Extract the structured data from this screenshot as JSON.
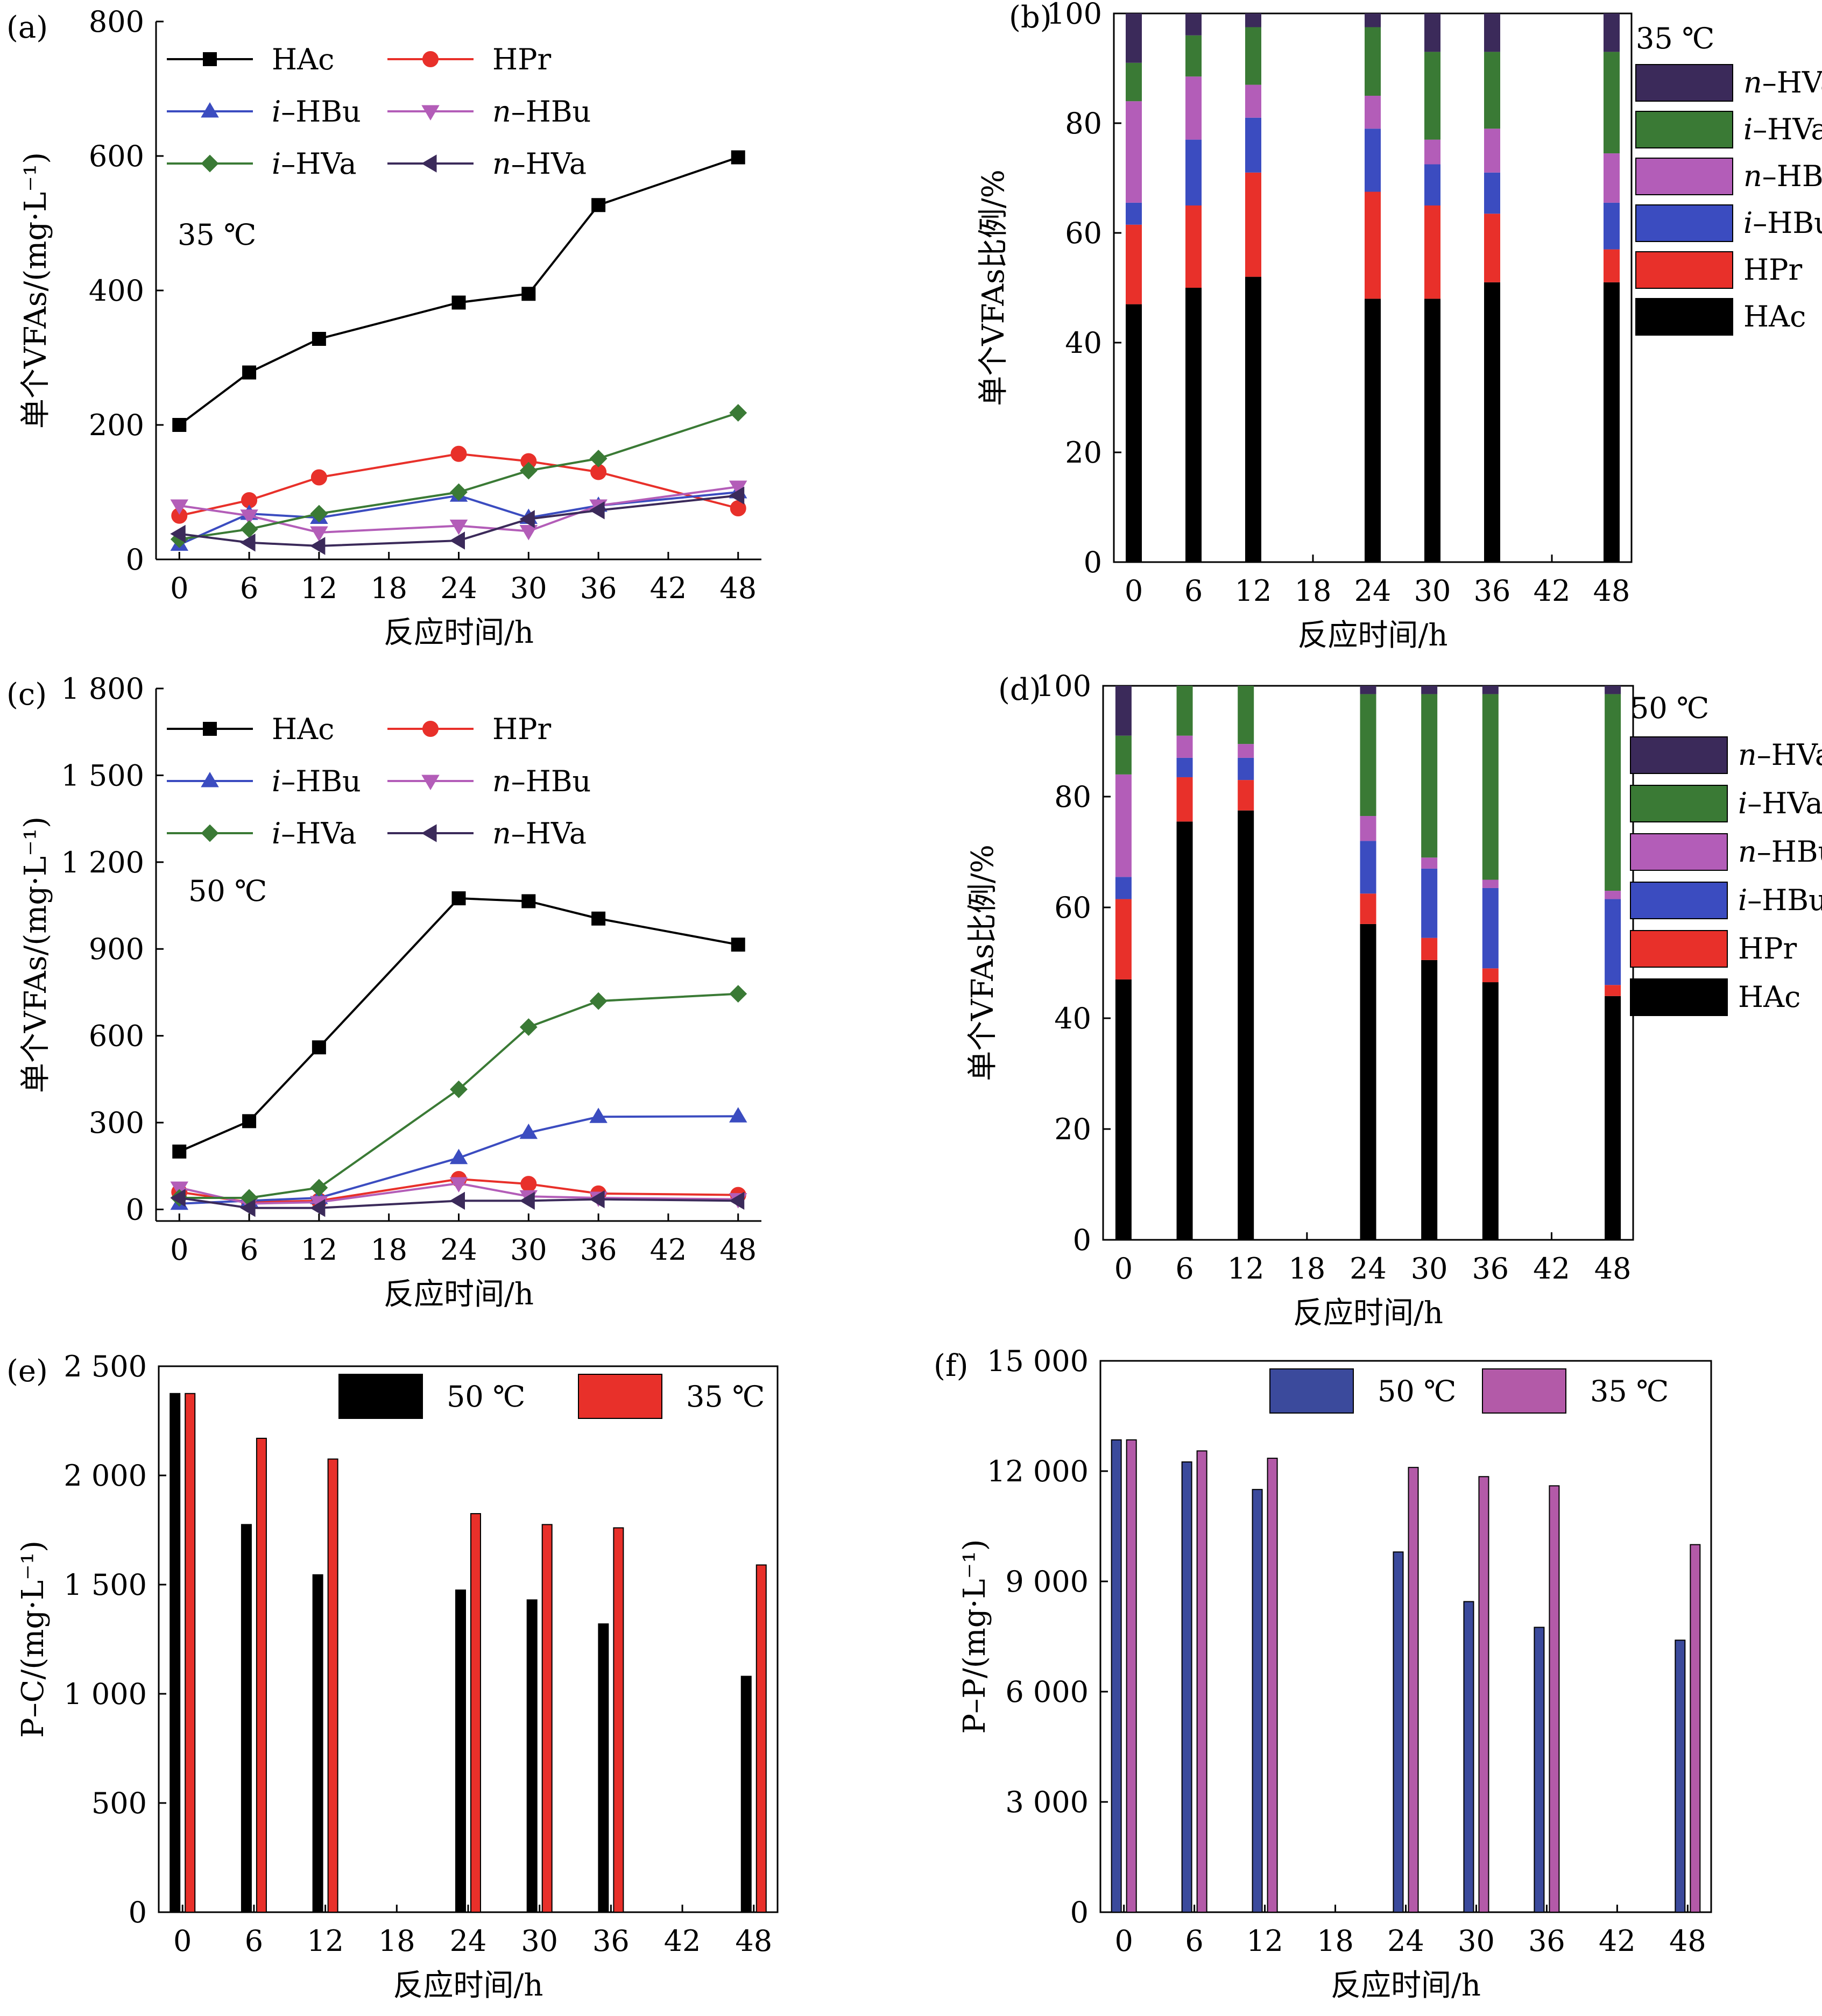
{
  "colors": {
    "HAc": "#000000",
    "HPr": "#e8302a",
    "i-HBu": "#3b4cc0",
    "n-HBu": "#b35db8",
    "i-HVa": "#3a7a35",
    "n-HVa": "#3b2a5a",
    "bar50": "#3b4a9c",
    "bar35": "#b35aa8"
  },
  "chart_data": [
    {
      "id": "a",
      "panel_label": "(a)",
      "type": "line",
      "annotation": "35 ℃",
      "xlabel": "反应时间/h",
      "ylabel": "单个VFAs/(mg·L⁻¹)",
      "xlim": [
        -2,
        50
      ],
      "ylim": [
        0,
        800
      ],
      "xticks": [
        0,
        6,
        12,
        18,
        24,
        30,
        36,
        42,
        48
      ],
      "xtick_labels": [
        "0",
        "6",
        "12",
        "18",
        "24",
        "30",
        "36",
        "42",
        "48"
      ],
      "yticks": [
        0,
        200,
        400,
        600,
        800
      ],
      "ytick_labels": [
        "0",
        "200",
        "400",
        "600",
        "800"
      ],
      "x": [
        0,
        6,
        12,
        24,
        30,
        36,
        48
      ],
      "series": [
        {
          "name": "HAc",
          "label_prefix": "",
          "label_main": "HAc",
          "marker": "square",
          "values": [
            200,
            278,
            328,
            382,
            395,
            527,
            598
          ]
        },
        {
          "name": "HPr",
          "label_prefix": "",
          "label_main": "HPr",
          "marker": "circle",
          "values": [
            65,
            88,
            122,
            157,
            146,
            130,
            76
          ]
        },
        {
          "name": "i-HBu",
          "label_prefix": "i",
          "label_main": "–HBu",
          "marker": "triangle-up",
          "values": [
            22,
            68,
            62,
            95,
            62,
            80,
            100
          ]
        },
        {
          "name": "n-HBu",
          "label_prefix": "n",
          "label_main": "–HBu",
          "marker": "triangle-down",
          "values": [
            80,
            65,
            40,
            50,
            42,
            80,
            108
          ]
        },
        {
          "name": "i-HVa",
          "label_prefix": "i",
          "label_main": "–HVa",
          "marker": "diamond",
          "values": [
            30,
            45,
            68,
            100,
            132,
            150,
            218
          ]
        },
        {
          "name": "n-HVa",
          "label_prefix": "n",
          "label_main": "–HVa",
          "marker": "triangle-left",
          "values": [
            38,
            25,
            20,
            28,
            60,
            73,
            95
          ]
        }
      ]
    },
    {
      "id": "b",
      "panel_label": "(b)",
      "type": "bar",
      "stacked": true,
      "legend_title": "35 ℃",
      "xlabel": "反应时间/h",
      "ylabel": "单个VFAs比例/%",
      "xlim": [
        -2,
        50
      ],
      "ylim": [
        0,
        100
      ],
      "xticks": [
        0,
        6,
        12,
        18,
        24,
        30,
        36,
        42,
        48
      ],
      "xtick_labels": [
        "0",
        "6",
        "12",
        "18",
        "24",
        "30",
        "36",
        "42",
        "48"
      ],
      "yticks": [
        0,
        20,
        40,
        60,
        80,
        100
      ],
      "ytick_labels": [
        "0",
        "20",
        "40",
        "60",
        "80",
        "100"
      ],
      "x": [
        0,
        6,
        12,
        24,
        30,
        36,
        48
      ],
      "series": [
        {
          "name": "HAc",
          "label_prefix": "",
          "label_main": "HAc",
          "values": [
            47,
            50,
            52,
            48,
            48,
            51,
            51
          ]
        },
        {
          "name": "HPr",
          "label_prefix": "",
          "label_main": "HPr",
          "values": [
            14.5,
            15,
            19,
            19.5,
            17,
            12.5,
            6
          ]
        },
        {
          "name": "i-HBu",
          "label_prefix": "i",
          "label_main": "–HBu",
          "values": [
            4,
            12,
            10,
            11.5,
            7.5,
            7.5,
            8.5
          ]
        },
        {
          "name": "n-HBu",
          "label_prefix": "n",
          "label_main": "–HBu",
          "values": [
            18.5,
            11.5,
            6,
            6,
            4.5,
            8,
            9
          ]
        },
        {
          "name": "i-HVa",
          "label_prefix": "i",
          "label_main": "–HVa",
          "values": [
            7,
            7.5,
            10.5,
            12.5,
            16,
            14,
            18.5
          ]
        },
        {
          "name": "n-HVa",
          "label_prefix": "n",
          "label_main": "–HVa",
          "values": [
            9,
            4,
            2.5,
            2.5,
            7,
            7,
            7
          ]
        }
      ]
    },
    {
      "id": "c",
      "panel_label": "(c)",
      "type": "line",
      "annotation": "50 ℃",
      "xlabel": "反应时间/h",
      "ylabel": "单个VFAs/(mg·L⁻¹)",
      "xlim": [
        -2,
        50
      ],
      "ylim": [
        -40,
        1800
      ],
      "xticks": [
        0,
        6,
        12,
        18,
        24,
        30,
        36,
        42,
        48
      ],
      "xtick_labels": [
        "0",
        "6",
        "12",
        "18",
        "24",
        "30",
        "36",
        "42",
        "48"
      ],
      "yticks": [
        0,
        300,
        600,
        900,
        1200,
        1500,
        1800
      ],
      "ytick_labels": [
        "0",
        "300",
        "600",
        "900",
        "1 200",
        "1 500",
        "1 800"
      ],
      "x": [
        0,
        6,
        12,
        24,
        30,
        36,
        48
      ],
      "series": [
        {
          "name": "HAc",
          "label_prefix": "",
          "label_main": "HAc",
          "marker": "square",
          "values": [
            200,
            305,
            560,
            1075,
            1065,
            1005,
            915
          ]
        },
        {
          "name": "HPr",
          "label_prefix": "",
          "label_main": "HPr",
          "marker": "circle",
          "values": [
            60,
            25,
            30,
            105,
            88,
            55,
            50
          ]
        },
        {
          "name": "i-HBu",
          "label_prefix": "i",
          "label_main": "–HBu",
          "marker": "triangle-up",
          "values": [
            20,
            30,
            40,
            178,
            265,
            320,
            322
          ]
        },
        {
          "name": "n-HBu",
          "label_prefix": "n",
          "label_main": "–HBu",
          "marker": "triangle-down",
          "values": [
            75,
            20,
            25,
            90,
            45,
            40,
            35
          ]
        },
        {
          "name": "i-HVa",
          "label_prefix": "i",
          "label_main": "–HVa",
          "marker": "diamond",
          "values": [
            40,
            40,
            75,
            415,
            630,
            720,
            745
          ]
        },
        {
          "name": "n-HVa",
          "label_prefix": "n",
          "label_main": "–HVa",
          "marker": "triangle-left",
          "values": [
            40,
            5,
            5,
            30,
            30,
            35,
            30
          ]
        }
      ]
    },
    {
      "id": "d",
      "panel_label": "(d)",
      "type": "bar",
      "stacked": true,
      "legend_title": "50 ℃",
      "xlabel": "反应时间/h",
      "ylabel": "单个VFAs比例/%",
      "xlim": [
        -2,
        50
      ],
      "ylim": [
        0,
        100
      ],
      "xticks": [
        0,
        6,
        12,
        18,
        24,
        30,
        36,
        42,
        48
      ],
      "xtick_labels": [
        "0",
        "6",
        "12",
        "18",
        "24",
        "30",
        "36",
        "42",
        "48"
      ],
      "yticks": [
        0,
        20,
        40,
        60,
        80,
        100
      ],
      "ytick_labels": [
        "0",
        "20",
        "40",
        "60",
        "80",
        "100"
      ],
      "x": [
        0,
        6,
        12,
        24,
        30,
        36,
        48
      ],
      "series": [
        {
          "name": "HAc",
          "label_prefix": "",
          "label_main": "HAc",
          "values": [
            47,
            75.5,
            77.5,
            57,
            50.5,
            46.5,
            44
          ]
        },
        {
          "name": "HPr",
          "label_prefix": "",
          "label_main": "HPr",
          "values": [
            14.5,
            8,
            5.5,
            5.5,
            4,
            2.5,
            2
          ]
        },
        {
          "name": "i-HBu",
          "label_prefix": "i",
          "label_main": "–HBu",
          "values": [
            4,
            3.5,
            4,
            9.5,
            12.5,
            14.5,
            15.5
          ]
        },
        {
          "name": "n-HBu",
          "label_prefix": "n",
          "label_main": "–HBu",
          "values": [
            18.5,
            4,
            2.5,
            4.5,
            2,
            1.5,
            1.5
          ]
        },
        {
          "name": "i-HVa",
          "label_prefix": "i",
          "label_main": "–HVa",
          "values": [
            7,
            9,
            10.5,
            22,
            29.5,
            33.5,
            35.5
          ]
        },
        {
          "name": "n-HVa",
          "label_prefix": "n",
          "label_main": "–HVa",
          "values": [
            9,
            0,
            0,
            1.5,
            1.5,
            1.5,
            1.5
          ]
        }
      ]
    },
    {
      "id": "e",
      "panel_label": "(e)",
      "type": "bar",
      "xlabel": "反应时间/h",
      "ylabel": "P–C/(mg·L⁻¹)",
      "xlim": [
        -2,
        50
      ],
      "ylim": [
        0,
        2500
      ],
      "xticks": [
        0,
        6,
        12,
        18,
        24,
        30,
        36,
        42,
        48
      ],
      "xtick_labels": [
        "0",
        "6",
        "12",
        "18",
        "24",
        "30",
        "36",
        "42",
        "48"
      ],
      "yticks": [
        0,
        500,
        1000,
        1500,
        2000,
        2500
      ],
      "ytick_labels": [
        "0",
        "500",
        "1 000",
        "1 500",
        "2 000",
        "2 500"
      ],
      "x": [
        0,
        6,
        12,
        24,
        30,
        36,
        48
      ],
      "series": [
        {
          "name": "50 ℃",
          "color": "#000000",
          "values": [
            2375,
            1775,
            1545,
            1475,
            1430,
            1320,
            1080
          ]
        },
        {
          "name": "35 ℃",
          "color": "#e8302a",
          "values": [
            2375,
            2170,
            2075,
            1825,
            1775,
            1760,
            1590
          ]
        }
      ]
    },
    {
      "id": "f",
      "panel_label": "(f)",
      "type": "bar",
      "xlabel": "反应时间/h",
      "ylabel": "P–P/(mg·L⁻¹)",
      "xlim": [
        -2,
        50
      ],
      "ylim": [
        0,
        15000
      ],
      "xticks": [
        0,
        6,
        12,
        18,
        24,
        30,
        36,
        42,
        48
      ],
      "xtick_labels": [
        "0",
        "6",
        "12",
        "18",
        "24",
        "30",
        "36",
        "42",
        "48"
      ],
      "yticks": [
        0,
        3000,
        6000,
        9000,
        12000,
        15000
      ],
      "ytick_labels": [
        "0",
        "3 000",
        "6 000",
        "9 000",
        "12 000",
        "15 000"
      ],
      "x": [
        0,
        6,
        12,
        24,
        30,
        36,
        48
      ],
      "series": [
        {
          "name": "50 ℃",
          "color": "#3b4a9c",
          "values": [
            12850,
            12250,
            11500,
            9800,
            8450,
            7750,
            7400
          ]
        },
        {
          "name": "35 ℃",
          "color": "#b35aa8",
          "values": [
            12850,
            12550,
            12350,
            12100,
            11850,
            11600,
            10000
          ]
        }
      ]
    }
  ]
}
